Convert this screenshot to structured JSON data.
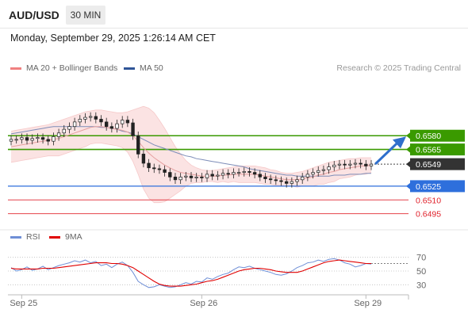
{
  "header": {
    "symbol": "AUD/USD",
    "timeframe": "30 MIN",
    "timestamp": "Monday, September 29, 2025 1:26:14 AM CET"
  },
  "legend_main": [
    {
      "label": "MA 20 + Bollinger Bands",
      "color": "#f08080"
    },
    {
      "label": "MA 50",
      "color": "#2f5597"
    }
  ],
  "legend_rsi": [
    {
      "label": "RSI",
      "color": "#6f8fd6"
    },
    {
      "label": "9MA",
      "color": "#e00000"
    }
  ],
  "credit": "Research © 2025 Trading Central",
  "colors": {
    "resistance": "#3a9a00",
    "current": "#333333",
    "pivot": "#2e6fdc",
    "support": "#e0212b",
    "arrow": "#2f6fcc",
    "candle": "#222222",
    "bollinger": "#fbe3e3"
  },
  "chart_data": [
    {
      "type": "line",
      "title": "",
      "subtitle": "",
      "indicators": [
        "MA 20 + Bollinger Bands",
        "MA 50"
      ],
      "x_ticks": [
        "Sep 25",
        "Sep 26",
        "Sep 29"
      ],
      "ylim": [
        0.648,
        0.6645
      ],
      "levels": [
        {
          "value": 0.658,
          "label": "0.6580",
          "kind": "resistance"
        },
        {
          "value": 0.6565,
          "label": "0.6565",
          "kind": "resistance"
        },
        {
          "value": 0.6549,
          "label": "0.6549",
          "kind": "current"
        },
        {
          "value": 0.6525,
          "label": "0.6525",
          "kind": "pivot"
        },
        {
          "value": 0.651,
          "label": "0.6510",
          "kind": "support"
        },
        {
          "value": 0.6495,
          "label": "0.6495",
          "kind": "support"
        }
      ],
      "close": [
        0.6576,
        0.6576,
        0.6578,
        0.6575,
        0.6577,
        0.6578,
        0.6576,
        0.6574,
        0.6579,
        0.6583,
        0.6587,
        0.659,
        0.6595,
        0.6598,
        0.66,
        0.6601,
        0.6598,
        0.6595,
        0.659,
        0.6588,
        0.6593,
        0.6597,
        0.6594,
        0.658,
        0.656,
        0.655,
        0.6545,
        0.6544,
        0.6543,
        0.654,
        0.6535,
        0.6532,
        0.6535,
        0.6536,
        0.6534,
        0.6535,
        0.6534,
        0.6538,
        0.6536,
        0.6537,
        0.6539,
        0.6538,
        0.654,
        0.654,
        0.6541,
        0.654,
        0.6538,
        0.6535,
        0.6533,
        0.6532,
        0.6531,
        0.653,
        0.6528,
        0.653,
        0.6532,
        0.6535,
        0.6538,
        0.654,
        0.6542,
        0.6543,
        0.6546,
        0.6548,
        0.6549,
        0.6548,
        0.6549,
        0.655,
        0.6549,
        0.6547,
        0.6549
      ],
      "ma20": [
        0.6568,
        0.6569,
        0.657,
        0.6571,
        0.6572,
        0.6573,
        0.6574,
        0.6575,
        0.6576,
        0.6577,
        0.6579,
        0.6581,
        0.6583,
        0.6585,
        0.6587,
        0.6589,
        0.659,
        0.659,
        0.6589,
        0.6588,
        0.6587,
        0.6586,
        0.6584,
        0.658,
        0.6574,
        0.6567,
        0.6561,
        0.6556,
        0.6552,
        0.6548,
        0.6545,
        0.6542,
        0.654,
        0.6539,
        0.6538,
        0.6537,
        0.6536,
        0.6536,
        0.6536,
        0.6536,
        0.6537,
        0.6537,
        0.6538,
        0.6538,
        0.6538,
        0.6538,
        0.6538,
        0.6537,
        0.6536,
        0.6535,
        0.6534,
        0.6533,
        0.6532,
        0.6532,
        0.6532,
        0.6533,
        0.6534,
        0.6535,
        0.6537,
        0.6538,
        0.654,
        0.6541,
        0.6543,
        0.6544,
        0.6545,
        0.6546,
        0.6547,
        0.6547,
        0.6548
      ],
      "bb_upper": [
        0.6585,
        0.6586,
        0.6587,
        0.6588,
        0.6589,
        0.659,
        0.6591,
        0.6592,
        0.6594,
        0.6596,
        0.6598,
        0.66,
        0.6602,
        0.6604,
        0.6606,
        0.6607,
        0.6608,
        0.6608,
        0.6607,
        0.6606,
        0.6605,
        0.6605,
        0.6606,
        0.6608,
        0.661,
        0.6612,
        0.661,
        0.6605,
        0.6597,
        0.6588,
        0.6578,
        0.6568,
        0.656,
        0.6553,
        0.6548,
        0.6545,
        0.6543,
        0.6542,
        0.6542,
        0.6543,
        0.6544,
        0.6545,
        0.6546,
        0.6547,
        0.6547,
        0.6547,
        0.6547,
        0.6546,
        0.6545,
        0.6543,
        0.6542,
        0.654,
        0.6539,
        0.6539,
        0.654,
        0.6541,
        0.6543,
        0.6545,
        0.6547,
        0.6549,
        0.6551,
        0.6552,
        0.6553,
        0.6554,
        0.6555,
        0.6555,
        0.6556,
        0.6556,
        0.6556
      ],
      "bb_lower": [
        0.6551,
        0.6552,
        0.6553,
        0.6554,
        0.6555,
        0.6556,
        0.6557,
        0.6558,
        0.6558,
        0.6558,
        0.656,
        0.6562,
        0.6564,
        0.6566,
        0.6568,
        0.6571,
        0.6572,
        0.6572,
        0.6571,
        0.657,
        0.6569,
        0.6567,
        0.6562,
        0.6552,
        0.6538,
        0.6522,
        0.6512,
        0.6507,
        0.6507,
        0.6508,
        0.6512,
        0.6516,
        0.652,
        0.6525,
        0.6528,
        0.6529,
        0.6529,
        0.653,
        0.653,
        0.6529,
        0.653,
        0.6529,
        0.653,
        0.6529,
        0.6529,
        0.6529,
        0.6529,
        0.6528,
        0.6527,
        0.6527,
        0.6526,
        0.6526,
        0.6525,
        0.6525,
        0.6524,
        0.6525,
        0.6525,
        0.6525,
        0.6527,
        0.6527,
        0.6529,
        0.653,
        0.6533,
        0.6534,
        0.6535,
        0.6537,
        0.6538,
        0.6538,
        0.654
      ],
      "ma50": [
        0.6582,
        0.6583,
        0.6584,
        0.6585,
        0.6586,
        0.6587,
        0.6588,
        0.6589,
        0.659,
        0.659,
        0.659,
        0.659,
        0.659,
        0.659,
        0.659,
        0.659,
        0.659,
        0.6589,
        0.6589,
        0.6588,
        0.6587,
        0.6585,
        0.6584,
        0.6582,
        0.6579,
        0.6576,
        0.6573,
        0.657,
        0.6568,
        0.6566,
        0.6564,
        0.6562,
        0.656,
        0.6558,
        0.6557,
        0.6555,
        0.6554,
        0.6553,
        0.6552,
        0.6551,
        0.655,
        0.6549,
        0.6548,
        0.6547,
        0.6546,
        0.6544,
        0.6543,
        0.6542,
        0.6541,
        0.654,
        0.6539,
        0.6538,
        0.6537,
        0.6537,
        0.6536,
        0.6536,
        0.6536,
        0.6536,
        0.6536,
        0.6536,
        0.6536,
        0.6537,
        0.6537,
        0.6537,
        0.6538,
        0.6538,
        0.6538,
        0.6539,
        0.6539
      ],
      "forecast": {
        "from": 0.6549,
        "to": 0.658,
        "direction": "up"
      }
    },
    {
      "type": "line",
      "title": "",
      "indicators": [
        "RSI",
        "9MA"
      ],
      "ylim": [
        20,
        80
      ],
      "y_ticks": [
        70,
        50,
        30
      ],
      "y_tick_labels": [
        "70",
        "50",
        "30"
      ],
      "reference_levels": [
        70,
        50,
        30
      ],
      "rsi": [
        55,
        50,
        52,
        56,
        51,
        53,
        57,
        52,
        55,
        58,
        60,
        62,
        65,
        63,
        66,
        62,
        64,
        58,
        60,
        55,
        60,
        63,
        58,
        48,
        35,
        30,
        26,
        27,
        30,
        28,
        26,
        27,
        30,
        33,
        31,
        35,
        34,
        40,
        38,
        42,
        45,
        47,
        52,
        56,
        55,
        57,
        54,
        52,
        50,
        48,
        45,
        44,
        46,
        50,
        55,
        58,
        62,
        63,
        66,
        64,
        67,
        68,
        66,
        62,
        60,
        56,
        58,
        61,
        60
      ],
      "rsi_ma9": [
        54,
        53,
        53,
        53,
        53,
        53,
        54,
        54,
        54,
        55,
        56,
        57,
        58,
        59,
        60,
        61,
        62,
        62,
        62,
        61,
        61,
        60,
        58,
        55,
        50,
        45,
        40,
        35,
        31,
        29,
        28,
        28,
        28,
        29,
        30,
        31,
        33,
        35,
        36,
        38,
        41,
        44,
        47,
        50,
        52,
        53,
        54,
        54,
        53,
        52,
        50,
        49,
        48,
        48,
        48,
        50,
        53,
        56,
        59,
        62,
        64,
        65,
        66,
        65,
        64,
        63,
        62,
        61,
        61
      ]
    }
  ]
}
